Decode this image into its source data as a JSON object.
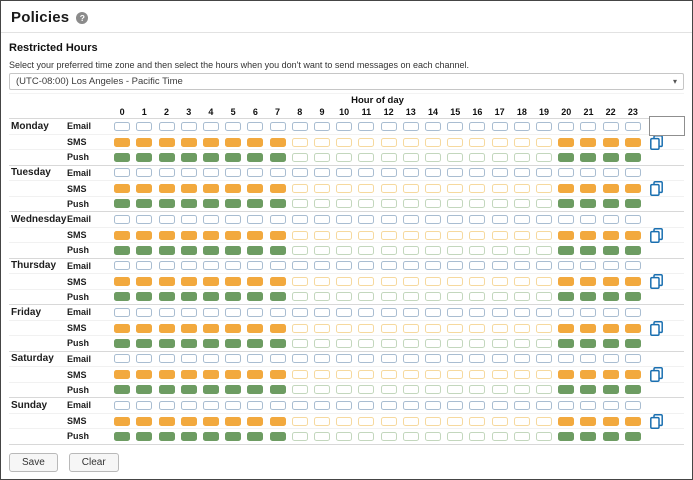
{
  "page": {
    "title": "Policies",
    "help_icon": "?",
    "section_title": "Restricted Hours",
    "helper_text": "Select your preferred time zone and then select the hours when you don't want to send messages on each channel.",
    "timezone_selected": "(UTC-08:00) Los Angeles - Pacific Time"
  },
  "grid": {
    "hour_header": "Hour of day",
    "hours": [
      "0",
      "1",
      "2",
      "3",
      "4",
      "5",
      "6",
      "7",
      "8",
      "9",
      "10",
      "11",
      "12",
      "13",
      "14",
      "15",
      "16",
      "17",
      "18",
      "19",
      "20",
      "21",
      "22",
      "23"
    ],
    "empty_box": {
      "day": "Monday",
      "channel": "Email"
    },
    "days": [
      {
        "label": "Monday",
        "rows": [
          {
            "channel": "Email",
            "filled": []
          },
          {
            "channel": "SMS",
            "filled": [
              0,
              1,
              2,
              3,
              4,
              5,
              6,
              7,
              20,
              21,
              22,
              23
            ]
          },
          {
            "channel": "Push",
            "filled": [
              0,
              1,
              2,
              3,
              4,
              5,
              6,
              7,
              20,
              21,
              22,
              23
            ]
          }
        ]
      },
      {
        "label": "Tuesday",
        "rows": [
          {
            "channel": "Email",
            "filled": []
          },
          {
            "channel": "SMS",
            "filled": [
              0,
              1,
              2,
              3,
              4,
              5,
              6,
              7,
              20,
              21,
              22,
              23
            ]
          },
          {
            "channel": "Push",
            "filled": [
              0,
              1,
              2,
              3,
              4,
              5,
              6,
              7,
              20,
              21,
              22,
              23
            ]
          }
        ]
      },
      {
        "label": "Wednesday",
        "rows": [
          {
            "channel": "Email",
            "filled": []
          },
          {
            "channel": "SMS",
            "filled": [
              0,
              1,
              2,
              3,
              4,
              5,
              6,
              7,
              20,
              21,
              22,
              23
            ]
          },
          {
            "channel": "Push",
            "filled": [
              0,
              1,
              2,
              3,
              4,
              5,
              6,
              7,
              20,
              21,
              22,
              23
            ]
          }
        ]
      },
      {
        "label": "Thursday",
        "rows": [
          {
            "channel": "Email",
            "filled": []
          },
          {
            "channel": "SMS",
            "filled": [
              0,
              1,
              2,
              3,
              4,
              5,
              6,
              7,
              20,
              21,
              22,
              23
            ]
          },
          {
            "channel": "Push",
            "filled": [
              0,
              1,
              2,
              3,
              4,
              5,
              6,
              7,
              20,
              21,
              22,
              23
            ]
          }
        ]
      },
      {
        "label": "Friday",
        "rows": [
          {
            "channel": "Email",
            "filled": []
          },
          {
            "channel": "SMS",
            "filled": [
              0,
              1,
              2,
              3,
              4,
              5,
              6,
              7,
              20,
              21,
              22,
              23
            ]
          },
          {
            "channel": "Push",
            "filled": [
              0,
              1,
              2,
              3,
              4,
              5,
              6,
              7,
              20,
              21,
              22,
              23
            ]
          }
        ]
      },
      {
        "label": "Saturday",
        "rows": [
          {
            "channel": "Email",
            "filled": []
          },
          {
            "channel": "SMS",
            "filled": [
              0,
              1,
              2,
              3,
              4,
              5,
              6,
              7,
              20,
              21,
              22,
              23
            ]
          },
          {
            "channel": "Push",
            "filled": [
              0,
              1,
              2,
              3,
              4,
              5,
              6,
              7,
              20,
              21,
              22,
              23
            ]
          }
        ]
      },
      {
        "label": "Sunday",
        "rows": [
          {
            "channel": "Email",
            "filled": []
          },
          {
            "channel": "SMS",
            "filled": [
              0,
              1,
              2,
              3,
              4,
              5,
              6,
              7,
              20,
              21,
              22,
              23
            ]
          },
          {
            "channel": "Push",
            "filled": [
              0,
              1,
              2,
              3,
              4,
              5,
              6,
              7,
              20,
              21,
              22,
              23
            ]
          }
        ]
      }
    ]
  },
  "footer": {
    "save_label": "Save",
    "clear_label": "Clear"
  },
  "colors": {
    "email_border": "#a9bdd1",
    "sms_filled": "#f2a93e",
    "sms_border": "#f6d99e",
    "push_filled": "#6d9c62",
    "push_border": "#c3d7bd",
    "copy_icon": "#1a6fb0"
  }
}
